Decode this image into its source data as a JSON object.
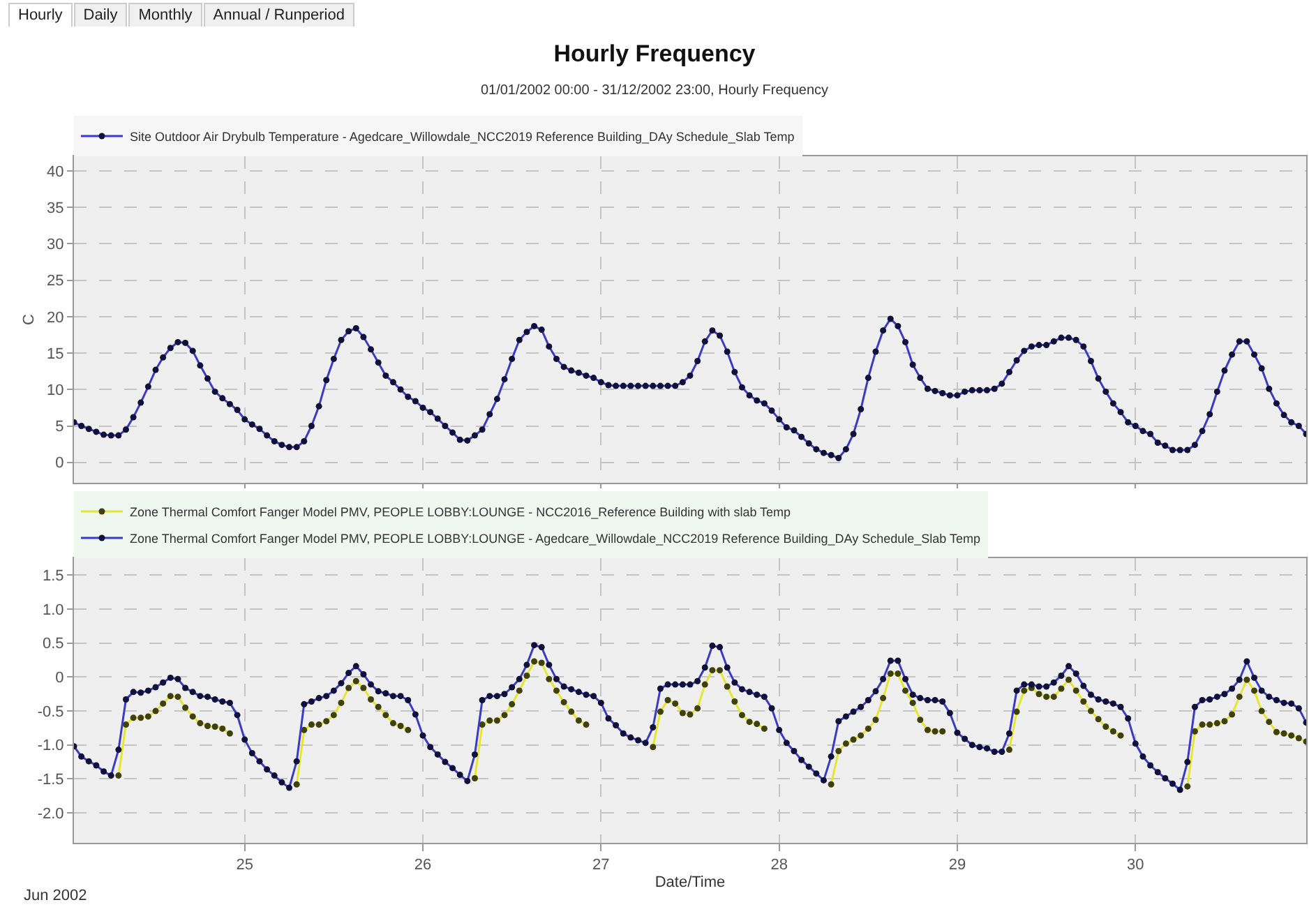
{
  "chart_data": [
    {
      "type": "line",
      "title": "Hourly Frequency",
      "subtitle": "01/01/2002 00:00 - 31/12/2002 23:00, Hourly Frequency",
      "ylabel": "C",
      "annotations": [
        "Hourly",
        "Daily",
        "Monthly",
        "Annual / Runperiod"
      ],
      "x": [
        "2002-06-24T01:00",
        "2002-06-24T02:00",
        "2002-06-24T03:00",
        "2002-06-24T04:00",
        "2002-06-24T05:00",
        "2002-06-24T06:00",
        "2002-06-24T07:00",
        "2002-06-24T08:00",
        "2002-06-24T09:00",
        "2002-06-24T10:00",
        "2002-06-24T11:00",
        "2002-06-24T12:00",
        "2002-06-24T13:00",
        "2002-06-24T14:00",
        "2002-06-24T15:00",
        "2002-06-24T16:00",
        "2002-06-24T17:00",
        "2002-06-24T18:00",
        "2002-06-24T19:00",
        "2002-06-24T20:00",
        "2002-06-24T21:00",
        "2002-06-24T22:00",
        "2002-06-24T23:00",
        "2002-06-25T00:00",
        "2002-06-25T01:00",
        "2002-06-25T02:00",
        "2002-06-25T03:00",
        "2002-06-25T04:00",
        "2002-06-25T05:00",
        "2002-06-25T06:00",
        "2002-06-25T07:00",
        "2002-06-25T08:00",
        "2002-06-25T09:00",
        "2002-06-25T10:00",
        "2002-06-25T11:00",
        "2002-06-25T12:00",
        "2002-06-25T13:00",
        "2002-06-25T14:00",
        "2002-06-25T15:00",
        "2002-06-25T16:00",
        "2002-06-25T17:00",
        "2002-06-25T18:00",
        "2002-06-25T19:00",
        "2002-06-25T20:00",
        "2002-06-25T21:00",
        "2002-06-25T22:00",
        "2002-06-25T23:00",
        "2002-06-26T00:00",
        "2002-06-26T01:00",
        "2002-06-26T02:00",
        "2002-06-26T03:00",
        "2002-06-26T04:00",
        "2002-06-26T05:00",
        "2002-06-26T06:00",
        "2002-06-26T07:00",
        "2002-06-26T08:00",
        "2002-06-26T09:00",
        "2002-06-26T10:00",
        "2002-06-26T11:00",
        "2002-06-26T12:00",
        "2002-06-26T13:00",
        "2002-06-26T14:00",
        "2002-06-26T15:00",
        "2002-06-26T16:00",
        "2002-06-26T17:00",
        "2002-06-26T18:00",
        "2002-06-26T19:00",
        "2002-06-26T20:00",
        "2002-06-26T21:00",
        "2002-06-26T22:00",
        "2002-06-26T23:00",
        "2002-06-27T00:00",
        "2002-06-27T01:00",
        "2002-06-27T02:00",
        "2002-06-27T03:00",
        "2002-06-27T04:00",
        "2002-06-27T05:00",
        "2002-06-27T06:00",
        "2002-06-27T07:00",
        "2002-06-27T08:00",
        "2002-06-27T09:00",
        "2002-06-27T10:00",
        "2002-06-27T11:00",
        "2002-06-27T12:00",
        "2002-06-27T13:00",
        "2002-06-27T14:00",
        "2002-06-27T15:00",
        "2002-06-27T16:00",
        "2002-06-27T17:00",
        "2002-06-27T18:00",
        "2002-06-27T19:00",
        "2002-06-27T20:00",
        "2002-06-27T21:00",
        "2002-06-27T22:00",
        "2002-06-27T23:00",
        "2002-06-28T00:00",
        "2002-06-28T01:00",
        "2002-06-28T02:00",
        "2002-06-28T03:00",
        "2002-06-28T04:00",
        "2002-06-28T05:00",
        "2002-06-28T06:00",
        "2002-06-28T07:00",
        "2002-06-28T08:00",
        "2002-06-28T09:00",
        "2002-06-28T10:00",
        "2002-06-28T11:00",
        "2002-06-28T12:00",
        "2002-06-28T13:00",
        "2002-06-28T14:00",
        "2002-06-28T15:00",
        "2002-06-28T16:00",
        "2002-06-28T17:00",
        "2002-06-28T18:00",
        "2002-06-28T19:00",
        "2002-06-28T20:00",
        "2002-06-28T21:00",
        "2002-06-28T22:00",
        "2002-06-28T23:00",
        "2002-06-29T00:00",
        "2002-06-29T01:00",
        "2002-06-29T02:00",
        "2002-06-29T03:00",
        "2002-06-29T04:00",
        "2002-06-29T05:00",
        "2002-06-29T06:00",
        "2002-06-29T07:00",
        "2002-06-29T08:00",
        "2002-06-29T09:00",
        "2002-06-29T10:00",
        "2002-06-29T11:00",
        "2002-06-29T12:00",
        "2002-06-29T13:00",
        "2002-06-29T14:00",
        "2002-06-29T15:00",
        "2002-06-29T16:00",
        "2002-06-29T17:00",
        "2002-06-29T18:00",
        "2002-06-29T19:00",
        "2002-06-29T20:00",
        "2002-06-29T21:00",
        "2002-06-29T22:00",
        "2002-06-29T23:00",
        "2002-06-30T00:00",
        "2002-06-30T01:00",
        "2002-06-30T02:00",
        "2002-06-30T03:00",
        "2002-06-30T04:00",
        "2002-06-30T05:00",
        "2002-06-30T06:00",
        "2002-06-30T07:00",
        "2002-06-30T08:00",
        "2002-06-30T09:00",
        "2002-06-30T10:00",
        "2002-06-30T11:00",
        "2002-06-30T12:00",
        "2002-06-30T13:00",
        "2002-06-30T14:00",
        "2002-06-30T15:00",
        "2002-06-30T16:00",
        "2002-06-30T17:00",
        "2002-06-30T18:00",
        "2002-06-30T19:00",
        "2002-06-30T20:00",
        "2002-06-30T21:00",
        "2002-06-30T22:00",
        "2002-06-30T23:00"
      ],
      "series": [
        {
          "name": "Site Outdoor Air Drybulb Temperature - Agedcare_Willowdale_NCC2019 Reference Building_DAy Schedule_Slab Temp",
          "color": "#3a3ac8",
          "values": [
            5.5,
            5.0,
            4.6,
            4.2,
            3.8,
            3.7,
            3.7,
            4.5,
            6.2,
            8.2,
            10.4,
            12.7,
            14.4,
            15.7,
            16.5,
            16.4,
            15.3,
            13.3,
            11.5,
            9.7,
            8.8,
            8.0,
            7.2,
            5.9,
            5.2,
            4.6,
            3.7,
            2.9,
            2.4,
            2.1,
            2.1,
            2.9,
            5.0,
            7.7,
            11.3,
            14.2,
            16.8,
            18.0,
            18.4,
            17.2,
            15.5,
            13.7,
            11.9,
            11.0,
            10.0,
            9.0,
            8.4,
            7.5,
            6.9,
            6.0,
            5.0,
            4.1,
            3.1,
            3.0,
            3.7,
            4.5,
            6.6,
            8.7,
            11.4,
            14.2,
            16.8,
            17.9,
            18.7,
            18.2,
            15.9,
            14.2,
            13.1,
            12.6,
            12.3,
            11.9,
            11.6,
            11.0,
            10.6,
            10.5,
            10.5,
            10.5,
            10.5,
            10.5,
            10.5,
            10.5,
            10.5,
            10.5,
            11.0,
            11.9,
            13.9,
            16.6,
            18.1,
            17.4,
            15.2,
            12.4,
            10.3,
            9.2,
            8.5,
            8.1,
            7.1,
            5.9,
            4.8,
            4.4,
            3.5,
            2.6,
            1.8,
            1.3,
            1.0,
            0.6,
            1.8,
            3.9,
            7.3,
            11.6,
            15.2,
            18.1,
            19.7,
            18.7,
            16.5,
            13.4,
            11.6,
            10.1,
            9.8,
            9.5,
            9.2,
            9.2,
            9.7,
            9.9,
            9.9,
            9.9,
            10.1,
            10.8,
            12.4,
            14.0,
            15.3,
            15.9,
            16.1,
            16.1,
            16.6,
            17.1,
            17.1,
            16.8,
            15.9,
            13.9,
            11.5,
            9.7,
            8.1,
            6.9,
            5.5,
            5.0,
            4.3,
            3.9,
            2.7,
            2.3,
            1.7,
            1.7,
            1.7,
            2.4,
            4.3,
            6.6,
            9.7,
            12.6,
            14.8,
            16.6,
            16.6,
            14.8,
            12.9,
            10.1,
            8.1,
            6.5,
            5.5,
            5.0,
            3.9
          ]
        }
      ],
      "xlim": [
        "2002-06-24T01:00",
        "2002-06-30T23:00"
      ],
      "xticks": [
        {
          "value": "2002-06-25",
          "label": null
        },
        {
          "value": "2002-06-26",
          "label": null
        },
        {
          "value": "2002-06-27",
          "label": null
        },
        {
          "value": "2002-06-28",
          "label": null
        },
        {
          "value": "2002-06-29",
          "label": null
        },
        {
          "value": "2002-06-30",
          "label": null
        }
      ],
      "ylim": [
        -2.8,
        42
      ],
      "yticks": [
        0,
        5,
        10,
        15,
        20,
        25,
        30,
        35,
        40
      ],
      "tick_labels": "y",
      "grid": true,
      "legend": "top left",
      "marker": "circle",
      "line_style": "solid"
    },
    {
      "type": "line",
      "xlabel": "Date/Time",
      "annotations": [
        "Jun 2002"
      ],
      "x": [
        "2002-06-24T01:00",
        "2002-06-24T02:00",
        "2002-06-24T03:00",
        "2002-06-24T04:00",
        "2002-06-24T05:00",
        "2002-06-24T06:00",
        "2002-06-24T07:00",
        "2002-06-24T08:00",
        "2002-06-24T09:00",
        "2002-06-24T10:00",
        "2002-06-24T11:00",
        "2002-06-24T12:00",
        "2002-06-24T13:00",
        "2002-06-24T14:00",
        "2002-06-24T15:00",
        "2002-06-24T16:00",
        "2002-06-24T17:00",
        "2002-06-24T18:00",
        "2002-06-24T19:00",
        "2002-06-24T20:00",
        "2002-06-24T21:00",
        "2002-06-24T22:00",
        "2002-06-24T23:00",
        "2002-06-25T00:00",
        "2002-06-25T01:00",
        "2002-06-25T02:00",
        "2002-06-25T03:00",
        "2002-06-25T04:00",
        "2002-06-25T05:00",
        "2002-06-25T06:00",
        "2002-06-25T07:00",
        "2002-06-25T08:00",
        "2002-06-25T09:00",
        "2002-06-25T10:00",
        "2002-06-25T11:00",
        "2002-06-25T12:00",
        "2002-06-25T13:00",
        "2002-06-25T14:00",
        "2002-06-25T15:00",
        "2002-06-25T16:00",
        "2002-06-25T17:00",
        "2002-06-25T18:00",
        "2002-06-25T19:00",
        "2002-06-25T20:00",
        "2002-06-25T21:00",
        "2002-06-25T22:00",
        "2002-06-25T23:00",
        "2002-06-26T00:00",
        "2002-06-26T01:00",
        "2002-06-26T02:00",
        "2002-06-26T03:00",
        "2002-06-26T04:00",
        "2002-06-26T05:00",
        "2002-06-26T06:00",
        "2002-06-26T07:00",
        "2002-06-26T08:00",
        "2002-06-26T09:00",
        "2002-06-26T10:00",
        "2002-06-26T11:00",
        "2002-06-26T12:00",
        "2002-06-26T13:00",
        "2002-06-26T14:00",
        "2002-06-26T15:00",
        "2002-06-26T16:00",
        "2002-06-26T17:00",
        "2002-06-26T18:00",
        "2002-06-26T19:00",
        "2002-06-26T20:00",
        "2002-06-26T21:00",
        "2002-06-26T22:00",
        "2002-06-26T23:00",
        "2002-06-27T00:00",
        "2002-06-27T01:00",
        "2002-06-27T02:00",
        "2002-06-27T03:00",
        "2002-06-27T04:00",
        "2002-06-27T05:00",
        "2002-06-27T06:00",
        "2002-06-27T07:00",
        "2002-06-27T08:00",
        "2002-06-27T09:00",
        "2002-06-27T10:00",
        "2002-06-27T11:00",
        "2002-06-27T12:00",
        "2002-06-27T13:00",
        "2002-06-27T14:00",
        "2002-06-27T15:00",
        "2002-06-27T16:00",
        "2002-06-27T17:00",
        "2002-06-27T18:00",
        "2002-06-27T19:00",
        "2002-06-27T20:00",
        "2002-06-27T21:00",
        "2002-06-27T22:00",
        "2002-06-27T23:00",
        "2002-06-28T00:00",
        "2002-06-28T01:00",
        "2002-06-28T02:00",
        "2002-06-28T03:00",
        "2002-06-28T04:00",
        "2002-06-28T05:00",
        "2002-06-28T06:00",
        "2002-06-28T07:00",
        "2002-06-28T08:00",
        "2002-06-28T09:00",
        "2002-06-28T10:00",
        "2002-06-28T11:00",
        "2002-06-28T12:00",
        "2002-06-28T13:00",
        "2002-06-28T14:00",
        "2002-06-28T15:00",
        "2002-06-28T16:00",
        "2002-06-28T17:00",
        "2002-06-28T18:00",
        "2002-06-28T19:00",
        "2002-06-28T20:00",
        "2002-06-28T21:00",
        "2002-06-28T22:00",
        "2002-06-28T23:00",
        "2002-06-29T00:00",
        "2002-06-29T01:00",
        "2002-06-29T02:00",
        "2002-06-29T03:00",
        "2002-06-29T04:00",
        "2002-06-29T05:00",
        "2002-06-29T06:00",
        "2002-06-29T07:00",
        "2002-06-29T08:00",
        "2002-06-29T09:00",
        "2002-06-29T10:00",
        "2002-06-29T11:00",
        "2002-06-29T12:00",
        "2002-06-29T13:00",
        "2002-06-29T14:00",
        "2002-06-29T15:00",
        "2002-06-29T16:00",
        "2002-06-29T17:00",
        "2002-06-29T18:00",
        "2002-06-29T19:00",
        "2002-06-29T20:00",
        "2002-06-29T21:00",
        "2002-06-29T22:00",
        "2002-06-29T23:00",
        "2002-06-30T00:00",
        "2002-06-30T01:00",
        "2002-06-30T02:00",
        "2002-06-30T03:00",
        "2002-06-30T04:00",
        "2002-06-30T05:00",
        "2002-06-30T06:00",
        "2002-06-30T07:00",
        "2002-06-30T08:00",
        "2002-06-30T09:00",
        "2002-06-30T10:00",
        "2002-06-30T11:00",
        "2002-06-30T12:00",
        "2002-06-30T13:00",
        "2002-06-30T14:00",
        "2002-06-30T15:00",
        "2002-06-30T16:00",
        "2002-06-30T17:00",
        "2002-06-30T18:00",
        "2002-06-30T19:00",
        "2002-06-30T20:00",
        "2002-06-30T21:00",
        "2002-06-30T22:00",
        "2002-06-30T23:00"
      ],
      "series": [
        {
          "name": "Zone Thermal Comfort Fanger Model PMV, PEOPLE LOBBY:LOUNGE - NCC2016_Reference Building with slab Temp",
          "color": "#e6e62e",
          "values": [
            null,
            null,
            null,
            null,
            null,
            null,
            -1.45,
            -0.7,
            -0.6,
            -0.6,
            -0.58,
            -0.5,
            -0.39,
            -0.28,
            -0.29,
            -0.45,
            -0.58,
            -0.68,
            -0.72,
            -0.73,
            -0.76,
            -0.83,
            null,
            null,
            null,
            null,
            null,
            null,
            null,
            null,
            -1.58,
            -0.78,
            -0.7,
            -0.7,
            -0.65,
            -0.56,
            -0.38,
            -0.16,
            -0.06,
            -0.16,
            -0.33,
            -0.44,
            -0.56,
            -0.68,
            -0.72,
            -0.78,
            null,
            null,
            null,
            null,
            null,
            null,
            null,
            null,
            -1.49,
            -0.7,
            -0.64,
            -0.64,
            -0.56,
            -0.4,
            -0.2,
            0.02,
            0.23,
            0.21,
            -0.03,
            -0.2,
            -0.37,
            -0.51,
            -0.64,
            -0.7,
            null,
            null,
            null,
            null,
            null,
            null,
            null,
            null,
            -1.03,
            -0.51,
            -0.34,
            -0.39,
            -0.53,
            -0.55,
            -0.46,
            -0.11,
            0.1,
            0.1,
            -0.14,
            -0.36,
            -0.56,
            -0.66,
            -0.69,
            -0.76,
            null,
            null,
            null,
            null,
            null,
            null,
            null,
            null,
            -1.58,
            -1.09,
            -0.98,
            -0.92,
            -0.86,
            -0.76,
            -0.63,
            -0.31,
            0.05,
            0.05,
            -0.2,
            -0.38,
            -0.63,
            -0.78,
            -0.8,
            -0.8,
            null,
            null,
            null,
            null,
            null,
            null,
            null,
            null,
            -1.07,
            -0.51,
            -0.2,
            -0.16,
            -0.25,
            -0.29,
            -0.29,
            -0.17,
            -0.04,
            -0.2,
            -0.36,
            -0.5,
            -0.62,
            -0.73,
            -0.8,
            -0.86,
            null,
            null,
            null,
            null,
            null,
            null,
            null,
            null,
            -1.61,
            -0.8,
            -0.7,
            -0.7,
            -0.68,
            -0.65,
            -0.55,
            -0.29,
            -0.04,
            -0.2,
            -0.5,
            -0.66,
            -0.81,
            -0.83,
            -0.86,
            -0.9,
            -0.95
          ]
        },
        {
          "name": "Zone Thermal Comfort Fanger Model PMV, PEOPLE LOBBY:LOUNGE - Agedcare_Willowdale_NCC2019 Reference Building_DAy Schedule_Slab Temp",
          "color": "#3a3ac8",
          "values": [
            -1.02,
            -1.17,
            -1.24,
            -1.3,
            -1.39,
            -1.45,
            -1.07,
            -0.33,
            -0.22,
            -0.23,
            -0.2,
            -0.15,
            -0.08,
            -0.01,
            -0.03,
            -0.16,
            -0.22,
            -0.28,
            -0.29,
            -0.33,
            -0.36,
            -0.38,
            -0.56,
            -0.92,
            -1.12,
            -1.24,
            -1.36,
            -1.45,
            -1.55,
            -1.63,
            -1.24,
            -0.4,
            -0.36,
            -0.31,
            -0.28,
            -0.2,
            -0.09,
            0.06,
            0.16,
            0.04,
            -0.11,
            -0.21,
            -0.24,
            -0.28,
            -0.28,
            -0.34,
            -0.55,
            -0.86,
            -1.03,
            -1.14,
            -1.25,
            -1.34,
            -1.44,
            -1.53,
            -1.14,
            -0.34,
            -0.28,
            -0.28,
            -0.25,
            -0.15,
            -0.03,
            0.18,
            0.47,
            0.44,
            0.18,
            -0.03,
            -0.14,
            -0.18,
            -0.22,
            -0.26,
            -0.28,
            -0.38,
            -0.61,
            -0.71,
            -0.83,
            -0.89,
            -0.93,
            -0.97,
            -0.74,
            -0.17,
            -0.11,
            -0.11,
            -0.11,
            -0.11,
            -0.06,
            0.14,
            0.46,
            0.44,
            0.14,
            -0.08,
            -0.18,
            -0.22,
            -0.26,
            -0.29,
            -0.46,
            -0.78,
            -0.97,
            -1.09,
            -1.22,
            -1.32,
            -1.42,
            -1.52,
            -1.17,
            -0.65,
            -0.58,
            -0.51,
            -0.44,
            -0.34,
            -0.21,
            -0.03,
            0.24,
            0.24,
            -0.03,
            -0.26,
            -0.31,
            -0.34,
            -0.34,
            -0.36,
            -0.53,
            -0.82,
            -0.91,
            -1.0,
            -1.03,
            -1.05,
            -1.1,
            -1.1,
            -0.83,
            -0.2,
            -0.11,
            -0.11,
            -0.14,
            -0.14,
            -0.08,
            0.02,
            0.16,
            0.05,
            -0.13,
            -0.26,
            -0.33,
            -0.36,
            -0.39,
            -0.44,
            -0.61,
            -0.98,
            -1.17,
            -1.3,
            -1.4,
            -1.49,
            -1.57,
            -1.66,
            -1.25,
            -0.44,
            -0.34,
            -0.33,
            -0.29,
            -0.25,
            -0.17,
            -0.04,
            0.23,
            -0.01,
            -0.2,
            -0.29,
            -0.34,
            -0.38,
            -0.39,
            -0.46,
            -0.67
          ]
        }
      ],
      "xlim": [
        "2002-06-24T01:00",
        "2002-06-30T23:00"
      ],
      "xticks": [
        {
          "value": "2002-06-25",
          "label": "25"
        },
        {
          "value": "2002-06-26",
          "label": "26"
        },
        {
          "value": "2002-06-27",
          "label": "27"
        },
        {
          "value": "2002-06-28",
          "label": "28"
        },
        {
          "value": "2002-06-29",
          "label": "29"
        },
        {
          "value": "2002-06-30",
          "label": "30"
        }
      ],
      "ylim": [
        -2.44,
        1.75
      ],
      "yticks": [
        {
          "value": 1.5,
          "label": "1.5"
        },
        {
          "value": 1,
          "label": "1.0"
        },
        {
          "value": 0.5,
          "label": "0.5"
        },
        0,
        {
          "value": -0.5,
          "label": "-0.5"
        },
        {
          "value": -1,
          "label": "-1.0"
        },
        {
          "value": -1.5,
          "label": "-1.5"
        },
        {
          "value": -2,
          "label": "-2.0"
        }
      ],
      "grid": true,
      "legend": "top left",
      "marker": "circle",
      "line_style": "solid"
    }
  ]
}
